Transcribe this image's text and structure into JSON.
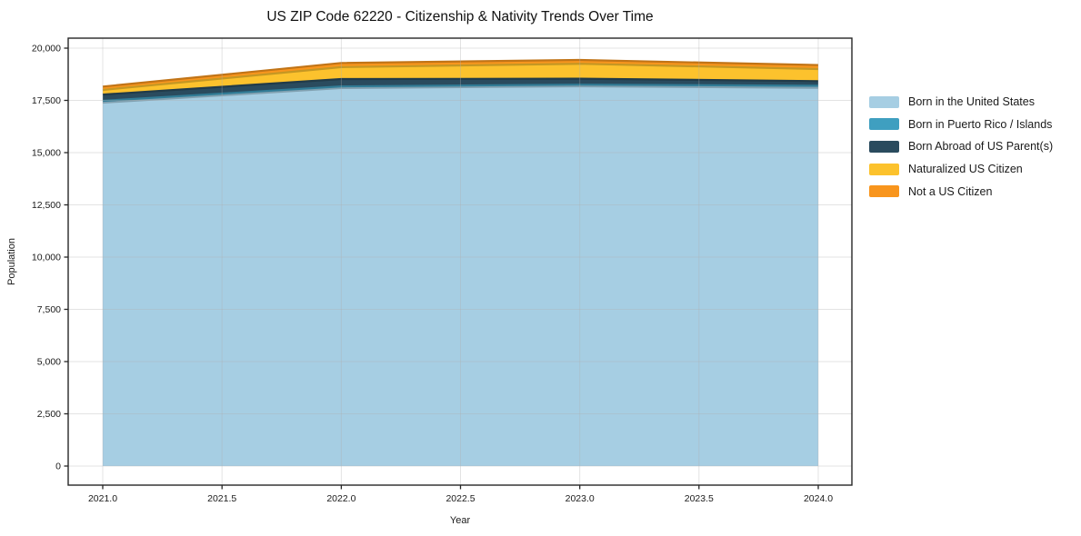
{
  "figure": {
    "background": "#ffffff",
    "text_color": "#1a1a1a",
    "spine_color": "#262626",
    "grid_color": "#b0b0b0"
  },
  "chart_data": {
    "type": "area",
    "stacked": true,
    "title": "US ZIP Code 62220 - Citizenship & Nativity Trends Over Time",
    "xlabel": "Year",
    "ylabel": "Population",
    "x": [
      2021,
      2022,
      2023,
      2024
    ],
    "series": [
      {
        "name": "Born in the United States",
        "color": "#a6cee3",
        "values": [
          17390,
          18090,
          18175,
          18100
        ]
      },
      {
        "name": "Born in Puerto Rico / Islands",
        "color": "#3f9fc0",
        "values": [
          90,
          80,
          75,
          100
        ]
      },
      {
        "name": "Born Abroad of US Parent(s)",
        "color": "#2a4b5e",
        "values": [
          300,
          350,
          290,
          220
        ]
      },
      {
        "name": "Naturalized US Citizen",
        "color": "#fcc22d",
        "values": [
          220,
          570,
          710,
          580
        ]
      },
      {
        "name": "Not a US Citizen",
        "color": "#f8951d",
        "values": [
          160,
          200,
          185,
          190
        ]
      }
    ],
    "totals": [
      18160,
      19290,
      19435,
      19190
    ],
    "xlim": [
      2020.855,
      2024.141
    ],
    "ylim": [
      -913,
      20478
    ],
    "xticks": [
      2021.0,
      2021.5,
      2022.0,
      2022.5,
      2023.0,
      2023.5,
      2024.0
    ],
    "xtick_labels": [
      "2021.0",
      "2021.5",
      "2022.0",
      "2022.5",
      "2023.0",
      "2023.5",
      "2024.0"
    ],
    "yticks": [
      0,
      2500,
      5000,
      7500,
      10000,
      12500,
      15000,
      17500,
      20000
    ],
    "ytick_labels": [
      "0",
      "2,500",
      "5,000",
      "7,500",
      "10,000",
      "12,500",
      "15,000",
      "17,500",
      "20,000"
    ],
    "grid": true,
    "legend_position": "outside-right"
  }
}
